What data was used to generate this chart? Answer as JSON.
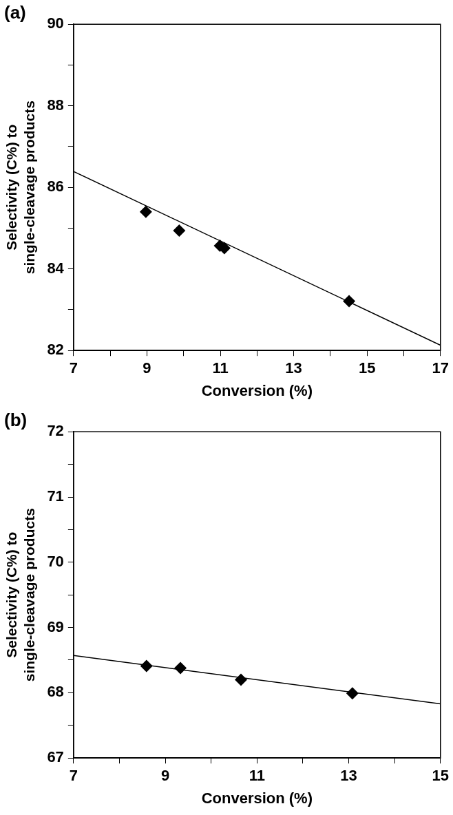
{
  "chart_data": [
    {
      "type": "scatter",
      "title": "(a)",
      "xlabel": "Conversion (%)",
      "ylabel": "Selectivity (C%) to\nsingle-cleavage products",
      "marker": "diamond",
      "grid": false,
      "xlim": [
        7,
        17
      ],
      "xticks": [
        7,
        {
          "value": 8,
          "label": null
        },
        9,
        {
          "value": 10,
          "label": null
        },
        11,
        {
          "value": 12,
          "label": null
        },
        13,
        {
          "value": 14,
          "label": null
        },
        15,
        {
          "value": 16,
          "label": null
        },
        17
      ],
      "ylim": [
        82,
        90
      ],
      "yticks": [
        82,
        {
          "value": 83,
          "label": null
        },
        84,
        {
          "value": 85,
          "label": null
        },
        86,
        {
          "value": 87,
          "label": null
        },
        88,
        {
          "value": 89,
          "label": null
        },
        90
      ],
      "series": [
        {
          "type": "scatter",
          "color": "#000000",
          "x": [
            8.97,
            9.88,
            10.99,
            11.11,
            14.51
          ],
          "values": [
            85.4,
            84.94,
            84.57,
            84.51,
            83.21
          ]
        },
        {
          "type": "line",
          "marker": "none",
          "color": "#000000",
          "x": [
            7,
            17
          ],
          "values": [
            86.39,
            82.13
          ]
        }
      ]
    },
    {
      "type": "scatter",
      "title": "(b)",
      "xlabel": "Conversion (%)",
      "ylabel": "Selectivity (C%) to\nsingle-cleavage products",
      "marker": "diamond",
      "grid": false,
      "xlim": [
        7,
        15
      ],
      "xticks": [
        7,
        {
          "value": 8,
          "label": null
        },
        9,
        {
          "value": 10,
          "label": null
        },
        11,
        {
          "value": 12,
          "label": null
        },
        13,
        {
          "value": 14,
          "label": null
        },
        15
      ],
      "ylim": [
        67,
        72
      ],
      "yticks": [
        67,
        {
          "value": 67.5,
          "label": null
        },
        68,
        {
          "value": 68.5,
          "label": null
        },
        69,
        {
          "value": 69.5,
          "label": null
        },
        70,
        {
          "value": 70.5,
          "label": null
        },
        71,
        {
          "value": 71.5,
          "label": null
        },
        72
      ],
      "series": [
        {
          "type": "scatter",
          "color": "#000000",
          "x": [
            8.59,
            9.33,
            10.65,
            13.08
          ],
          "values": [
            68.41,
            68.38,
            68.2,
            67.99
          ]
        },
        {
          "type": "line",
          "marker": "none",
          "color": "#000000",
          "x": [
            7,
            15
          ],
          "values": [
            68.57,
            67.83
          ]
        }
      ]
    }
  ]
}
